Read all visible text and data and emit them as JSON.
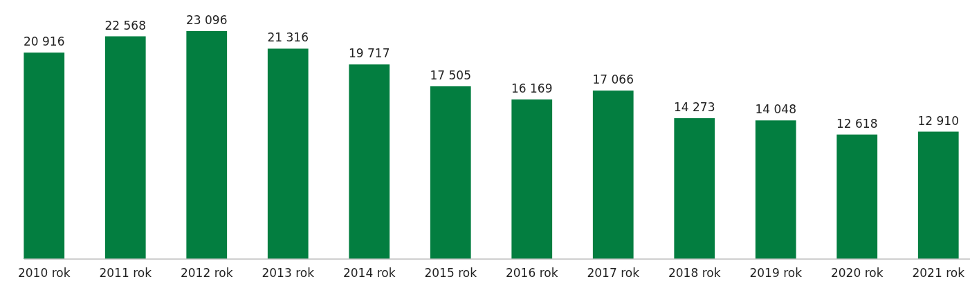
{
  "chart_data": {
    "type": "bar",
    "categories": [
      "2010 rok",
      "2011 rok",
      "2012 rok",
      "2013 rok",
      "2014 rok",
      "2015 rok",
      "2016 rok",
      "2017 rok",
      "2018 rok",
      "2019 rok",
      "2020 rok",
      "2021 rok"
    ],
    "values": [
      20916,
      22568,
      23096,
      21316,
      19717,
      17505,
      16169,
      17066,
      14273,
      14048,
      12618,
      12910
    ],
    "color": "#037e40",
    "data_labels": true
  }
}
